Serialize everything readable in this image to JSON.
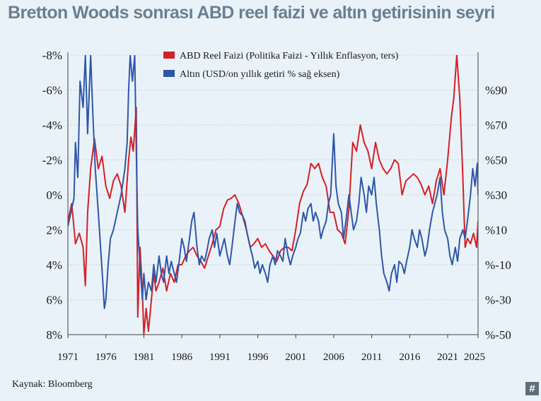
{
  "title": "Bretton Woods sonrası ABD reel faizi ve altın getirisinin seyri",
  "source": "Kaynak: Bloomberg",
  "badge": "#",
  "colors": {
    "real_rate": "#d42027",
    "gold": "#2f57a8",
    "grid": "#9aa3ac",
    "title": "#6b7f92"
  },
  "chart_data": {
    "type": "line",
    "title": "Bretton Woods sonrası ABD reel faizi ve altın getirisinin seyri",
    "x_ticks": [
      "1971",
      "1976",
      "1981",
      "1986",
      "1991",
      "1996",
      "2001",
      "2006",
      "2011",
      "2016",
      "2021",
      "2025"
    ],
    "xlim": [
      1971,
      2025
    ],
    "left_axis": {
      "ticks": [
        "-8%",
        "-6%",
        "-4%",
        "-2%",
        "0%",
        "2%",
        "4%",
        "6%",
        "8%"
      ],
      "tick_values": [
        -8,
        -6,
        -4,
        -2,
        0,
        2,
        4,
        6,
        8
      ],
      "range": [
        -8,
        8
      ],
      "inverted": true
    },
    "right_axis": {
      "ticks": [
        "%90",
        "%70",
        "%50",
        "%30",
        "%10",
        "%-10",
        "%-30",
        "%-50"
      ],
      "tick_values": [
        90,
        70,
        50,
        30,
        10,
        -10,
        -30,
        -50
      ],
      "range": [
        -50,
        110
      ]
    },
    "grid": true,
    "legend_position": "top",
    "series": [
      {
        "name": "ABD Reel Faizi (Politika Faizi - Yıllık Enflasyon, ters)",
        "axis": "left",
        "points": [
          [
            1971.0,
            1.5
          ],
          [
            1971.5,
            0.5
          ],
          [
            1972.0,
            2.8
          ],
          [
            1972.5,
            2.2
          ],
          [
            1973.0,
            3.0
          ],
          [
            1973.3,
            5.2
          ],
          [
            1973.6,
            1.0
          ],
          [
            1974.0,
            -1.5
          ],
          [
            1974.5,
            -3.2
          ],
          [
            1975.0,
            -1.5
          ],
          [
            1975.5,
            -2.2
          ],
          [
            1976.0,
            -0.5
          ],
          [
            1976.5,
            0.2
          ],
          [
            1977.0,
            -0.8
          ],
          [
            1977.5,
            -1.2
          ],
          [
            1978.0,
            -0.5
          ],
          [
            1978.5,
            1.0
          ],
          [
            1979.0,
            -2.0
          ],
          [
            1979.3,
            -3.3
          ],
          [
            1979.6,
            -2.5
          ],
          [
            1980.0,
            -5.0
          ],
          [
            1980.2,
            7.0
          ],
          [
            1980.5,
            3.0
          ],
          [
            1980.8,
            5.5
          ],
          [
            1981.0,
            8.0
          ],
          [
            1981.3,
            6.5
          ],
          [
            1981.6,
            7.8
          ],
          [
            1982.0,
            6.0
          ],
          [
            1982.3,
            4.5
          ],
          [
            1982.6,
            5.5
          ],
          [
            1983.0,
            5.0
          ],
          [
            1983.5,
            4.2
          ],
          [
            1984.0,
            5.5
          ],
          [
            1984.5,
            4.5
          ],
          [
            1985.0,
            5.0
          ],
          [
            1985.5,
            4.0
          ],
          [
            1986.0,
            4.0
          ],
          [
            1986.5,
            3.5
          ],
          [
            1987.0,
            3.2
          ],
          [
            1987.5,
            3.0
          ],
          [
            1988.0,
            3.5
          ],
          [
            1988.5,
            3.8
          ],
          [
            1989.0,
            4.2
          ],
          [
            1989.5,
            3.5
          ],
          [
            1990.0,
            2.8
          ],
          [
            1990.5,
            2.0
          ],
          [
            1991.0,
            1.8
          ],
          [
            1991.5,
            0.8
          ],
          [
            1992.0,
            0.3
          ],
          [
            1992.5,
            0.2
          ],
          [
            1993.0,
            0.0
          ],
          [
            1993.5,
            0.5
          ],
          [
            1994.0,
            1.2
          ],
          [
            1994.5,
            2.0
          ],
          [
            1995.0,
            3.0
          ],
          [
            1995.5,
            2.8
          ],
          [
            1996.0,
            2.5
          ],
          [
            1996.5,
            3.0
          ],
          [
            1997.0,
            2.8
          ],
          [
            1997.5,
            3.2
          ],
          [
            1998.0,
            3.5
          ],
          [
            1998.5,
            3.8
          ],
          [
            1999.0,
            3.2
          ],
          [
            1999.5,
            3.0
          ],
          [
            2000.0,
            3.0
          ],
          [
            2000.5,
            3.2
          ],
          [
            2001.0,
            2.0
          ],
          [
            2001.5,
            0.5
          ],
          [
            2002.0,
            -0.2
          ],
          [
            2002.5,
            -0.6
          ],
          [
            2003.0,
            -1.8
          ],
          [
            2003.5,
            -1.5
          ],
          [
            2004.0,
            -1.8
          ],
          [
            2004.5,
            -1.0
          ],
          [
            2005.0,
            -0.5
          ],
          [
            2005.5,
            1.0
          ],
          [
            2006.0,
            1.0
          ],
          [
            2006.5,
            2.0
          ],
          [
            2007.0,
            2.2
          ],
          [
            2007.5,
            2.8
          ],
          [
            2008.0,
            0.8
          ],
          [
            2008.5,
            -3.0
          ],
          [
            2009.0,
            -2.5
          ],
          [
            2009.5,
            -4.0
          ],
          [
            2010.0,
            -3.0
          ],
          [
            2010.5,
            -2.5
          ],
          [
            2011.0,
            -1.5
          ],
          [
            2011.5,
            -3.0
          ],
          [
            2012.0,
            -2.0
          ],
          [
            2012.5,
            -1.5
          ],
          [
            2013.0,
            -1.2
          ],
          [
            2013.5,
            -1.5
          ],
          [
            2014.0,
            -2.0
          ],
          [
            2014.5,
            -1.8
          ],
          [
            2015.0,
            0.0
          ],
          [
            2015.5,
            -0.8
          ],
          [
            2016.0,
            -1.0
          ],
          [
            2016.5,
            -1.2
          ],
          [
            2017.0,
            -1.0
          ],
          [
            2017.5,
            -0.6
          ],
          [
            2018.0,
            0.0
          ],
          [
            2018.5,
            -0.5
          ],
          [
            2019.0,
            0.5
          ],
          [
            2019.5,
            -0.8
          ],
          [
            2020.0,
            -1.5
          ],
          [
            2020.5,
            0.0
          ],
          [
            2021.0,
            -2.0
          ],
          [
            2021.5,
            -4.5
          ],
          [
            2021.8,
            -5.5
          ],
          [
            2022.2,
            -8.0
          ],
          [
            2022.6,
            -5.5
          ],
          [
            2023.0,
            -1.0
          ],
          [
            2023.3,
            3.0
          ],
          [
            2023.6,
            2.5
          ],
          [
            2024.0,
            2.8
          ],
          [
            2024.4,
            2.2
          ],
          [
            2024.8,
            3.0
          ],
          [
            2025.0,
            1.5
          ]
        ]
      },
      {
        "name": "Altın (USD/on yıllık getiri % sağ eksen)",
        "axis": "right",
        "points": [
          [
            1971.0,
            12
          ],
          [
            1971.4,
            20
          ],
          [
            1971.8,
            28
          ],
          [
            1972.0,
            60
          ],
          [
            1972.3,
            40
          ],
          [
            1972.6,
            95
          ],
          [
            1973.0,
            80
          ],
          [
            1973.3,
            110
          ],
          [
            1973.6,
            65
          ],
          [
            1974.0,
            110
          ],
          [
            1974.3,
            75
          ],
          [
            1974.6,
            45
          ],
          [
            1975.0,
            20
          ],
          [
            1975.3,
            0
          ],
          [
            1975.6,
            -20
          ],
          [
            1975.8,
            -35
          ],
          [
            1976.0,
            -30
          ],
          [
            1976.3,
            -10
          ],
          [
            1976.6,
            5
          ],
          [
            1977.0,
            10
          ],
          [
            1977.5,
            20
          ],
          [
            1978.0,
            30
          ],
          [
            1978.5,
            45
          ],
          [
            1978.8,
            60
          ],
          [
            1979.0,
            90
          ],
          [
            1979.2,
            110
          ],
          [
            1979.5,
            95
          ],
          [
            1979.8,
            110
          ],
          [
            1980.0,
            55
          ],
          [
            1980.2,
            10
          ],
          [
            1980.5,
            -10
          ],
          [
            1980.8,
            -30
          ],
          [
            1981.0,
            -15
          ],
          [
            1981.3,
            -30
          ],
          [
            1981.6,
            -20
          ],
          [
            1982.0,
            -25
          ],
          [
            1982.3,
            -10
          ],
          [
            1982.6,
            -20
          ],
          [
            1983.0,
            -5
          ],
          [
            1983.3,
            -15
          ],
          [
            1983.6,
            -20
          ],
          [
            1984.0,
            -5
          ],
          [
            1984.3,
            -15
          ],
          [
            1984.6,
            -8
          ],
          [
            1985.0,
            -15
          ],
          [
            1985.3,
            -20
          ],
          [
            1985.6,
            -10
          ],
          [
            1986.0,
            5
          ],
          [
            1986.3,
            0
          ],
          [
            1986.6,
            -8
          ],
          [
            1987.0,
            5
          ],
          [
            1987.3,
            15
          ],
          [
            1987.6,
            20
          ],
          [
            1988.0,
            0
          ],
          [
            1988.3,
            -10
          ],
          [
            1988.6,
            -5
          ],
          [
            1989.0,
            -8
          ],
          [
            1989.3,
            -2
          ],
          [
            1989.6,
            5
          ],
          [
            1990.0,
            10
          ],
          [
            1990.3,
            0
          ],
          [
            1990.6,
            8
          ],
          [
            1991.0,
            -5
          ],
          [
            1991.3,
            0
          ],
          [
            1991.6,
            5
          ],
          [
            1992.0,
            -5
          ],
          [
            1992.3,
            -10
          ],
          [
            1992.6,
            0
          ],
          [
            1993.0,
            15
          ],
          [
            1993.3,
            25
          ],
          [
            1993.6,
            20
          ],
          [
            1994.0,
            18
          ],
          [
            1994.3,
            15
          ],
          [
            1994.6,
            8
          ],
          [
            1995.0,
            0
          ],
          [
            1995.3,
            -5
          ],
          [
            1995.6,
            -12
          ],
          [
            1996.0,
            -8
          ],
          [
            1996.3,
            -15
          ],
          [
            1996.6,
            -10
          ],
          [
            1997.0,
            -15
          ],
          [
            1997.3,
            -20
          ],
          [
            1997.6,
            -10
          ],
          [
            1998.0,
            -5
          ],
          [
            1998.3,
            -10
          ],
          [
            1998.6,
            -2
          ],
          [
            1999.0,
            -5
          ],
          [
            1999.3,
            -8
          ],
          [
            1999.6,
            5
          ],
          [
            2000.0,
            -5
          ],
          [
            2000.3,
            -10
          ],
          [
            2000.6,
            -5
          ],
          [
            2001.0,
            0
          ],
          [
            2001.3,
            5
          ],
          [
            2001.6,
            8
          ],
          [
            2002.0,
            20
          ],
          [
            2002.3,
            15
          ],
          [
            2002.6,
            22
          ],
          [
            2003.0,
            25
          ],
          [
            2003.3,
            15
          ],
          [
            2003.6,
            20
          ],
          [
            2004.0,
            15
          ],
          [
            2004.3,
            5
          ],
          [
            2004.6,
            10
          ],
          [
            2005.0,
            15
          ],
          [
            2005.3,
            25
          ],
          [
            2005.6,
            30
          ],
          [
            2005.8,
            48
          ],
          [
            2006.0,
            65
          ],
          [
            2006.3,
            35
          ],
          [
            2006.6,
            25
          ],
          [
            2007.0,
            20
          ],
          [
            2007.3,
            5
          ],
          [
            2007.6,
            15
          ],
          [
            2008.0,
            30
          ],
          [
            2008.3,
            20
          ],
          [
            2008.6,
            10
          ],
          [
            2009.0,
            15
          ],
          [
            2009.3,
            25
          ],
          [
            2009.6,
            40
          ],
          [
            2010.0,
            30
          ],
          [
            2010.3,
            20
          ],
          [
            2010.6,
            35
          ],
          [
            2011.0,
            30
          ],
          [
            2011.3,
            40
          ],
          [
            2011.6,
            25
          ],
          [
            2012.0,
            10
          ],
          [
            2012.3,
            -5
          ],
          [
            2012.6,
            -15
          ],
          [
            2013.0,
            -20
          ],
          [
            2013.3,
            -25
          ],
          [
            2013.6,
            -15
          ],
          [
            2014.0,
            -10
          ],
          [
            2014.3,
            -20
          ],
          [
            2014.6,
            -8
          ],
          [
            2015.0,
            -10
          ],
          [
            2015.3,
            -15
          ],
          [
            2015.6,
            -8
          ],
          [
            2016.0,
            0
          ],
          [
            2016.3,
            10
          ],
          [
            2016.6,
            5
          ],
          [
            2017.0,
            0
          ],
          [
            2017.3,
            10
          ],
          [
            2017.6,
            5
          ],
          [
            2018.0,
            -5
          ],
          [
            2018.3,
            0
          ],
          [
            2018.6,
            10
          ],
          [
            2019.0,
            20
          ],
          [
            2019.3,
            25
          ],
          [
            2019.6,
            30
          ],
          [
            2020.0,
            40
          ],
          [
            2020.3,
            20
          ],
          [
            2020.6,
            10
          ],
          [
            2021.0,
            5
          ],
          [
            2021.3,
            -5
          ],
          [
            2021.6,
            -10
          ],
          [
            2022.0,
            0
          ],
          [
            2022.3,
            -8
          ],
          [
            2022.6,
            5
          ],
          [
            2023.0,
            10
          ],
          [
            2023.3,
            5
          ],
          [
            2023.6,
            15
          ],
          [
            2024.0,
            30
          ],
          [
            2024.3,
            45
          ],
          [
            2024.6,
            35
          ],
          [
            2024.9,
            48
          ],
          [
            2025.0,
            30
          ]
        ]
      }
    ]
  }
}
